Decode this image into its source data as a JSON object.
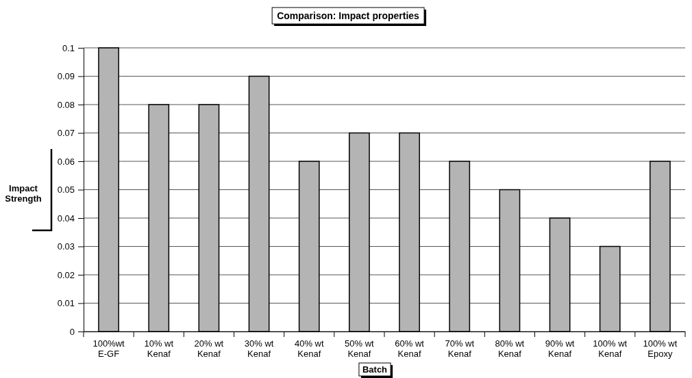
{
  "chart_data": {
    "type": "bar",
    "title": "Comparison: Impact properties",
    "xlabel": "Batch",
    "ylabel": "Impact Strength",
    "categories": [
      "100%wt E-GF",
      "10% wt Kenaf",
      "20% wt Kenaf",
      "30% wt Kenaf",
      "40% wt Kenaf",
      "50% wt Kenaf",
      "60% wt Kenaf",
      "70% wt Kenaf",
      "80% wt Kenaf",
      "90% wt Kenaf",
      "100% wt Kenaf",
      "100% wt Epoxy"
    ],
    "values": [
      0.1,
      0.08,
      0.08,
      0.09,
      0.06,
      0.07,
      0.07,
      0.06,
      0.05,
      0.04,
      0.03,
      0.06
    ],
    "color": "#b4b4b4",
    "ylim": [
      0,
      0.1
    ],
    "yticks": [
      0,
      0.01,
      0.02,
      0.03,
      0.04,
      0.05,
      0.06,
      0.07,
      0.08,
      0.09,
      0.1
    ],
    "grid": "y"
  }
}
